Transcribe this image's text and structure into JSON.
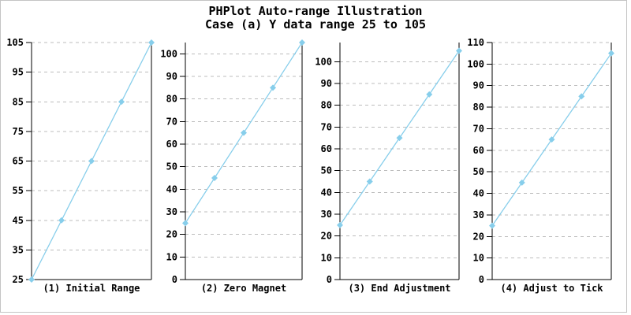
{
  "title": {
    "line1": "PHPlot Auto-range Illustration",
    "line2": "Case (a) Y data range 25 to 105"
  },
  "colors": {
    "data_line": "#87CEEB",
    "marker": "#87CEEB",
    "grid": "#bcbcbc",
    "axis": "#000000",
    "tick": "#000000",
    "text": "#000000",
    "frame_border": "#c4c4c4",
    "background": "#ffffff"
  },
  "chart_data": [
    {
      "type": "line",
      "label": "(1) Initial Range",
      "x": [
        1,
        2,
        3,
        4,
        5
      ],
      "values": [
        25,
        45,
        65,
        85,
        105
      ],
      "ylim": [
        25,
        105
      ],
      "yticks": [
        25,
        35,
        45,
        55,
        65,
        75,
        85,
        95,
        105
      ],
      "grid": "horizontal-dashed",
      "marker": "diamond",
      "legend": "none"
    },
    {
      "type": "line",
      "label": "(2) Zero Magnet",
      "x": [
        1,
        2,
        3,
        4,
        5
      ],
      "values": [
        25,
        45,
        65,
        85,
        105
      ],
      "ylim": [
        0,
        105
      ],
      "yticks": [
        0,
        10,
        20,
        30,
        40,
        50,
        60,
        70,
        80,
        90,
        100
      ],
      "grid": "horizontal-dashed",
      "marker": "diamond",
      "legend": "none"
    },
    {
      "type": "line",
      "label": "(3) End Adjustment",
      "x": [
        1,
        2,
        3,
        4,
        5
      ],
      "values": [
        25,
        45,
        65,
        85,
        105
      ],
      "ylim": [
        0,
        108.8
      ],
      "yticks": [
        0,
        10,
        20,
        30,
        40,
        50,
        60,
        70,
        80,
        90,
        100
      ],
      "grid": "horizontal-dashed",
      "marker": "diamond",
      "legend": "none"
    },
    {
      "type": "line",
      "label": "(4) Adjust to Tick",
      "x": [
        1,
        2,
        3,
        4,
        5
      ],
      "values": [
        25,
        45,
        65,
        85,
        105
      ],
      "ylim": [
        0,
        110
      ],
      "yticks": [
        0,
        10,
        20,
        30,
        40,
        50,
        60,
        70,
        80,
        90,
        100,
        110
      ],
      "grid": "horizontal-dashed",
      "marker": "diamond",
      "legend": "none"
    }
  ]
}
